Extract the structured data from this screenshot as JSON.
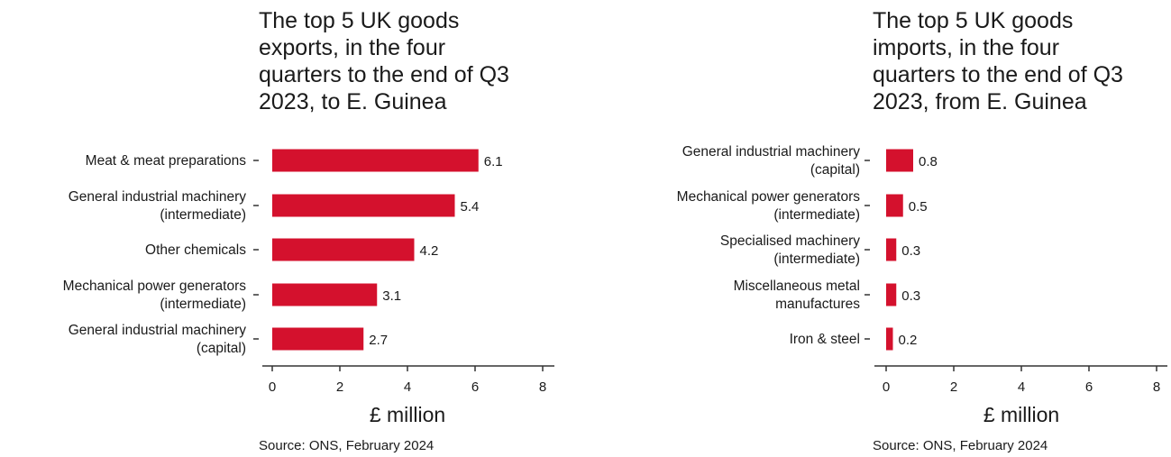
{
  "chart_data": [
    {
      "type": "bar",
      "orientation": "horizontal",
      "title": "The top 5 UK goods\nexports, in the four\nquarters to the end of Q3\n2023, to E. Guinea",
      "categories": [
        [
          "Meat & meat preparations"
        ],
        [
          "General industrial machinery",
          "(intermediate)"
        ],
        [
          "Other chemicals"
        ],
        [
          "Mechanical power generators",
          "(intermediate)"
        ],
        [
          "General industrial machinery",
          "(capital)"
        ]
      ],
      "values": [
        6.1,
        5.4,
        4.2,
        3.1,
        2.7
      ],
      "value_labels": [
        "6.1",
        "5.4",
        "4.2",
        "3.1",
        "2.7"
      ],
      "xlabel": "£ million",
      "xlim": [
        0,
        8
      ],
      "xticks": [
        0,
        2,
        4,
        6,
        8
      ],
      "source": "Source: ONS, February 2024",
      "bar_color": "#d4112d",
      "grid": false
    },
    {
      "type": "bar",
      "orientation": "horizontal",
      "title": "The top 5 UK goods\nimports, in the four\nquarters to the end of Q3\n2023, from E. Guinea",
      "categories": [
        [
          "General industrial machinery",
          "(capital)"
        ],
        [
          "Mechanical power generators",
          "(intermediate)"
        ],
        [
          "Specialised machinery",
          "(intermediate)"
        ],
        [
          "Miscellaneous metal",
          "manufactures"
        ],
        [
          "Iron & steel"
        ]
      ],
      "values": [
        0.8,
        0.5,
        0.3,
        0.3,
        0.2
      ],
      "value_labels": [
        "0.8",
        "0.5",
        "0.3",
        "0.3",
        "0.2"
      ],
      "xlabel": "£ million",
      "xlim": [
        0,
        8
      ],
      "xticks": [
        0,
        2,
        4,
        6,
        8
      ],
      "source": "Source: ONS, February 2024",
      "bar_color": "#d4112d",
      "grid": false
    }
  ]
}
